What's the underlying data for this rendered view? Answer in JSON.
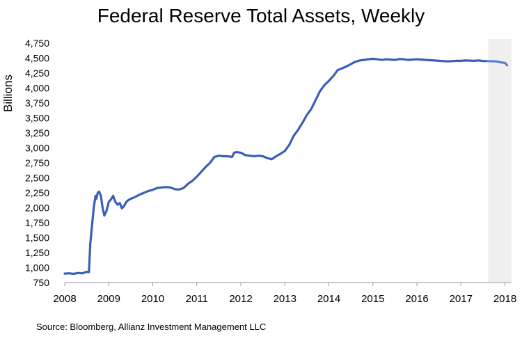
{
  "chart_data": {
    "type": "line",
    "title": "Federal Reserve Total Assets, Weekly",
    "ylabel": "Billions",
    "xlabel": "",
    "source": "Source: Bloomberg, Allianz Investment Management LLC",
    "xlim": [
      2008,
      2018.15
    ],
    "ylim": [
      750,
      4750
    ],
    "y_ticks": [
      "750",
      "1,000",
      "1,250",
      "1,500",
      "1,750",
      "2,000",
      "2,250",
      "2,500",
      "2,750",
      "3,000",
      "3,250",
      "3,500",
      "3,750",
      "4,000",
      "4,250",
      "4,500",
      "4,750"
    ],
    "x_ticks": [
      "2008",
      "2009",
      "2010",
      "2011",
      "2012",
      "2013",
      "2014",
      "2015",
      "2016",
      "2017",
      "2018"
    ],
    "grid": false,
    "shaded_region": [
      2017.62,
      2018.15
    ],
    "colors": {
      "line": "#3a5fb8",
      "line_recent": "#5b7fd0",
      "shade": "#efefef"
    },
    "series": [
      {
        "x": [
          2008.0,
          2008.1,
          2008.2,
          2008.3,
          2008.4,
          2008.5,
          2008.55,
          2008.58,
          2008.62,
          2008.66,
          2008.7,
          2008.72,
          2008.75,
          2008.78,
          2008.82,
          2008.86,
          2008.9,
          2008.95,
          2009.0,
          2009.05,
          2009.1,
          2009.15,
          2009.2,
          2009.25,
          2009.3,
          2009.35,
          2009.4,
          2009.45,
          2009.5,
          2009.6,
          2009.7,
          2009.8,
          2009.9,
          2010.0,
          2010.1,
          2010.2,
          2010.3,
          2010.4,
          2010.5,
          2010.6,
          2010.7,
          2010.8,
          2010.9,
          2011.0,
          2011.1,
          2011.2,
          2011.3,
          2011.4,
          2011.5,
          2011.6,
          2011.7,
          2011.8,
          2011.85,
          2011.9,
          2012.0,
          2012.1,
          2012.2,
          2012.3,
          2012.4,
          2012.5,
          2012.6,
          2012.7,
          2012.8,
          2012.9,
          2013.0,
          2013.1,
          2013.2,
          2013.3,
          2013.4,
          2013.5,
          2013.6,
          2013.7,
          2013.8,
          2013.9,
          2014.0,
          2014.1,
          2014.2,
          2014.3,
          2014.4,
          2014.5,
          2014.6,
          2014.7,
          2014.8,
          2014.9,
          2015.0,
          2015.1,
          2015.2,
          2015.3,
          2015.4,
          2015.5,
          2015.6,
          2015.7,
          2015.8,
          2015.9,
          2016.0,
          2016.1,
          2016.2,
          2016.3,
          2016.4,
          2016.5,
          2016.6,
          2016.7,
          2016.8,
          2016.9,
          2017.0,
          2017.1,
          2017.2,
          2017.3,
          2017.4,
          2017.5,
          2017.6
        ],
        "values": [
          900,
          905,
          895,
          910,
          905,
          930,
          925,
          1400,
          1700,
          2000,
          2200,
          2150,
          2250,
          2270,
          2200,
          2000,
          1870,
          1950,
          2100,
          2140,
          2200,
          2100,
          2050,
          2080,
          1990,
          2030,
          2100,
          2130,
          2150,
          2180,
          2220,
          2250,
          2280,
          2300,
          2330,
          2340,
          2345,
          2340,
          2310,
          2305,
          2330,
          2400,
          2450,
          2520,
          2600,
          2680,
          2750,
          2850,
          2870,
          2860,
          2860,
          2850,
          2920,
          2930,
          2920,
          2880,
          2870,
          2860,
          2870,
          2860,
          2830,
          2810,
          2860,
          2900,
          2950,
          3050,
          3200,
          3300,
          3420,
          3550,
          3650,
          3800,
          3950,
          4050,
          4120,
          4200,
          4300,
          4330,
          4360,
          4400,
          4440,
          4460,
          4470,
          4480,
          4490,
          4480,
          4470,
          4480,
          4475,
          4470,
          4485,
          4480,
          4470,
          4475,
          4480,
          4475,
          4470,
          4465,
          4460,
          4455,
          4450,
          4445,
          4450,
          4455,
          4455,
          4460,
          4458,
          4455,
          4460,
          4452,
          4450
        ]
      },
      {
        "x": [
          2017.6,
          2017.7,
          2017.8,
          2017.9,
          2018.0,
          2018.05
        ],
        "values": [
          4450,
          4448,
          4445,
          4430,
          4420,
          4380
        ]
      }
    ]
  }
}
